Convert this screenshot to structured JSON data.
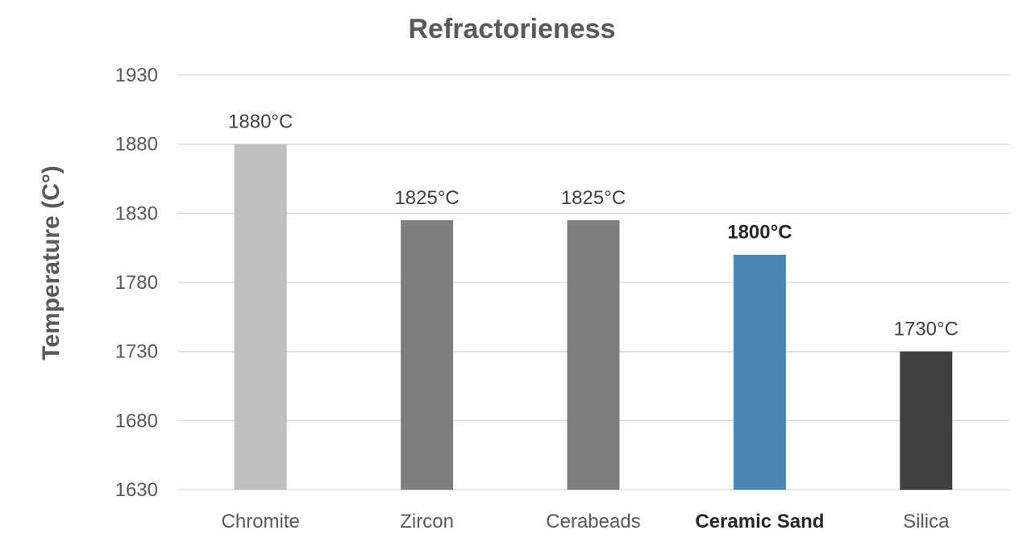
{
  "chart_data": {
    "type": "bar",
    "title": "Refractorieness",
    "xlabel": "",
    "ylabel": "Temperature (C°)",
    "ylim": [
      1630,
      1930
    ],
    "yticks": [
      1630,
      1680,
      1730,
      1780,
      1830,
      1880,
      1930
    ],
    "grid": true,
    "legend": "none",
    "categories": [
      "Chromite",
      "Zircon",
      "Cerabeads",
      "Ceramic Sand",
      "Silica"
    ],
    "values": [
      1880,
      1825,
      1825,
      1800,
      1730
    ],
    "data_labels": [
      "1880°C",
      "1825°C",
      "1825°C",
      "1800°C",
      "1730°C"
    ],
    "bar_colors": [
      "#bfbfbf",
      "#7f7f7f",
      "#7f7f7f",
      "#4a86b8",
      "#404040"
    ],
    "highlighted_category": "Ceramic Sand"
  },
  "colors": {
    "title_text": "#595959",
    "axis_text": "#595959",
    "data_label_text": "#404040",
    "highlight_text": "#262626",
    "gridline": "#d9d9d9"
  }
}
